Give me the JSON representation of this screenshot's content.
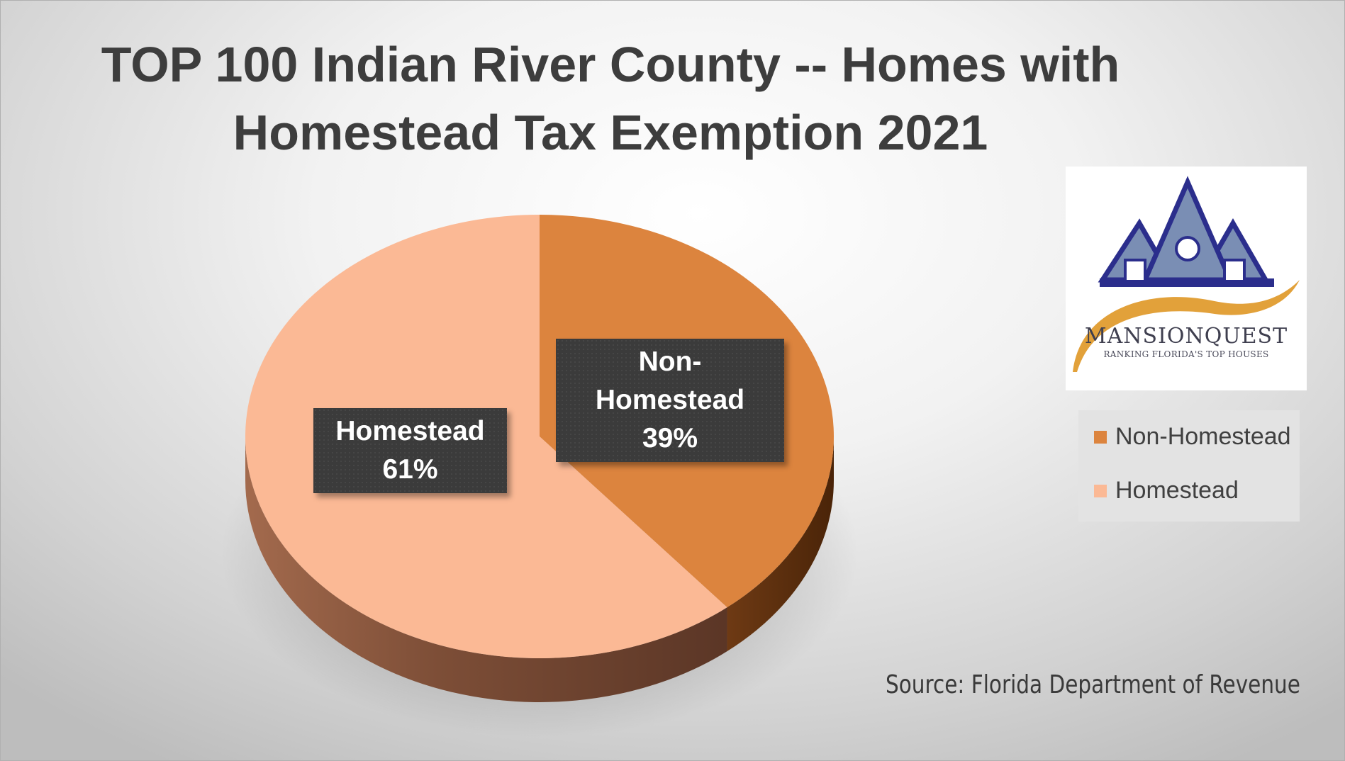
{
  "chart_data": {
    "type": "pie",
    "title": "TOP 100 Indian River County -- Homes with Homestead Tax Exemption 2021",
    "slices": [
      {
        "name": "Non-Homestead",
        "value": 39,
        "label": "39%",
        "color": "#DC843E",
        "side_color": "#6E3A14"
      },
      {
        "name": "Homestead",
        "value": 61,
        "label": "61%",
        "color": "#FBB995",
        "side_color": "#7D4E37"
      }
    ],
    "legend_position": "right",
    "source": "Source: Florida Department of Revenue"
  },
  "logo": {
    "name": "MANSIONQUEST",
    "tagline": "RANKING FLORIDA'S TOP HOUSES",
    "colors": {
      "roof": "#2B2E8C",
      "roof_fill": "#7A8EB4",
      "swoosh": "#E2A13A"
    }
  }
}
